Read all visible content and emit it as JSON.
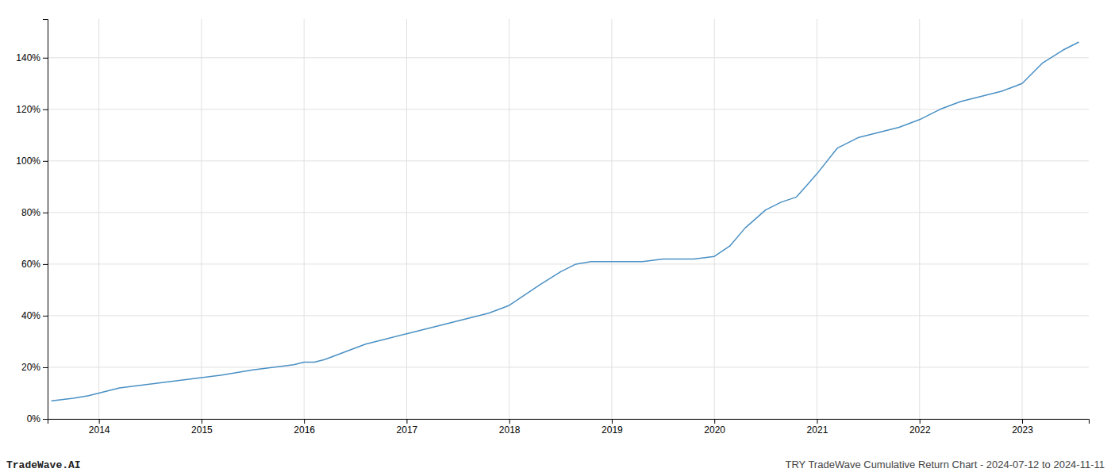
{
  "chart_data": {
    "type": "line",
    "title": "TRY TradeWave Cumulative Return Chart - 2024-07-12 to 2024-11-11",
    "annotations": [
      "TradeWave.AI"
    ],
    "color": "#4a90c4",
    "grid": true,
    "x": [
      2013.54,
      2013.75,
      2013.9,
      2014.0,
      2014.1,
      2014.2,
      2014.4,
      2014.6,
      2014.8,
      2015.0,
      2015.2,
      2015.5,
      2015.7,
      2015.9,
      2016.0,
      2016.1,
      2016.2,
      2016.4,
      2016.6,
      2016.8,
      2017.0,
      2017.2,
      2017.4,
      2017.6,
      2017.8,
      2018.0,
      2018.15,
      2018.3,
      2018.5,
      2018.65,
      2018.8,
      2019.0,
      2019.15,
      2019.3,
      2019.5,
      2019.65,
      2019.8,
      2020.0,
      2020.15,
      2020.3,
      2020.5,
      2020.65,
      2020.8,
      2021.0,
      2021.2,
      2021.4,
      2021.6,
      2021.8,
      2022.0,
      2022.2,
      2022.4,
      2022.6,
      2022.8,
      2023.0,
      2023.2,
      2023.4,
      2023.55
    ],
    "values": [
      7,
      8,
      9,
      10,
      11,
      12,
      13,
      14,
      15,
      16,
      17,
      19,
      20,
      21,
      22,
      22,
      23,
      26,
      29,
      31,
      33,
      35,
      37,
      39,
      41,
      44,
      48,
      52,
      57,
      60,
      61,
      61,
      61,
      61,
      62,
      62,
      62,
      63,
      67,
      74,
      81,
      84,
      86,
      95,
      105,
      109,
      111,
      113,
      116,
      120,
      123,
      125,
      127,
      130,
      138,
      143,
      146
    ],
    "xlim": [
      2013.5,
      2023.65
    ],
    "ylim": [
      0,
      155
    ],
    "xticks": [
      2014,
      2015,
      2016,
      2017,
      2018,
      2019,
      2020,
      2021,
      2022,
      2023
    ],
    "yticks": [
      {
        "value": 0,
        "label": "0%"
      },
      {
        "value": 20,
        "label": "20%"
      },
      {
        "value": 40,
        "label": "40%"
      },
      {
        "value": 60,
        "label": "60%"
      },
      {
        "value": 80,
        "label": "80%"
      },
      {
        "value": 100,
        "label": "100%"
      },
      {
        "value": 120,
        "label": "120%"
      },
      {
        "value": 140,
        "label": "140%"
      }
    ]
  }
}
